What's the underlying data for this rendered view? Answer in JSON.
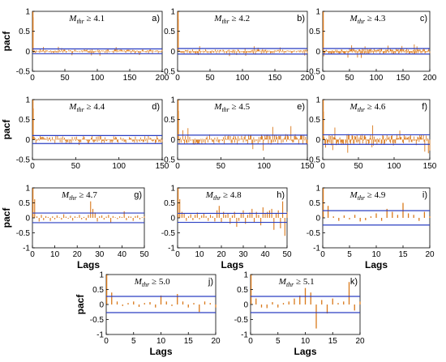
{
  "colors": {
    "bar": "#d9781a",
    "band": "#2b3fc2",
    "frame": "#000000"
  },
  "chart_data": [
    {
      "id": "a",
      "type": "bar",
      "title": "M_thr ≥ 4.1",
      "tag": "a)",
      "threshold_symbol": "M",
      "threshold_sub": "thr",
      "threshold_text": "≥ 4.1",
      "ylabel": "pacf",
      "xlabel": "",
      "xlim": [
        0,
        200
      ],
      "ylim": [
        -0.5,
        1
      ],
      "xticks": [
        0,
        50,
        100,
        150,
        200
      ],
      "yticks": [
        -0.5,
        0,
        0.5,
        1
      ],
      "ytick_labels": [
        "-0.5",
        "0",
        "0.5",
        "1"
      ],
      "conf": 0.06,
      "nlags": 200,
      "seed": 11,
      "amp": 0.045,
      "lag1": 0.85
    },
    {
      "id": "b",
      "type": "bar",
      "title": "M_thr ≥ 4.2",
      "tag": "b)",
      "threshold_symbol": "M",
      "threshold_sub": "thr",
      "threshold_text": "≥ 4.2",
      "ylabel": "",
      "xlabel": "",
      "xlim": [
        0,
        200
      ],
      "ylim": [
        -0.5,
        1
      ],
      "xticks": [
        0,
        50,
        100,
        150,
        200
      ],
      "yticks": [
        -0.5,
        0,
        0.5,
        1
      ],
      "ytick_labels": [
        "-0.5",
        "0",
        "0.5",
        "1"
      ],
      "conf": 0.07,
      "nlags": 200,
      "seed": 23,
      "amp": 0.05,
      "lag1": 0.8
    },
    {
      "id": "c",
      "type": "bar",
      "title": "M_thr ≥ 4.3",
      "tag": "c)",
      "threshold_symbol": "M",
      "threshold_sub": "thr",
      "threshold_text": "≥ 4.3",
      "ylabel": "",
      "xlabel": "",
      "xlim": [
        0,
        200
      ],
      "ylim": [
        -0.5,
        1
      ],
      "xticks": [
        0,
        50,
        100,
        150,
        200
      ],
      "yticks": [
        -0.5,
        0,
        0.5,
        1
      ],
      "ytick_labels": [
        "-0.5",
        "0",
        "0.5",
        "1"
      ],
      "conf": 0.07,
      "nlags": 200,
      "seed": 37,
      "amp": 0.07,
      "lag1": 0.78
    },
    {
      "id": "d",
      "type": "bar",
      "title": "M_thr ≥ 4.4",
      "tag": "d)",
      "threshold_symbol": "M",
      "threshold_sub": "thr",
      "threshold_text": "≥ 4.4",
      "ylabel": "pacf",
      "xlabel": "",
      "xlim": [
        0,
        150
      ],
      "ylim": [
        -0.5,
        1
      ],
      "xticks": [
        0,
        50,
        100,
        150
      ],
      "yticks": [
        -0.5,
        0,
        0.5,
        1
      ],
      "ytick_labels": [
        "-0.5",
        "0",
        "0.5",
        "1"
      ],
      "conf": 0.1,
      "nlags": 150,
      "seed": 41,
      "amp": 0.09,
      "lag1": 0.78
    },
    {
      "id": "e",
      "type": "bar",
      "title": "M_thr ≥ 4.5",
      "tag": "e)",
      "threshold_symbol": "M",
      "threshold_sub": "thr",
      "threshold_text": "≥ 4.5",
      "ylabel": "",
      "xlabel": "",
      "xlim": [
        0,
        150
      ],
      "ylim": [
        -0.5,
        1
      ],
      "xticks": [
        0,
        50,
        100,
        150
      ],
      "yticks": [
        -0.5,
        0,
        0.5,
        1
      ],
      "ytick_labels": [
        "-0.5",
        "0",
        "0.5",
        "1"
      ],
      "conf": 0.11,
      "nlags": 150,
      "seed": 53,
      "amp": 0.13,
      "lag1": 0.72
    },
    {
      "id": "f",
      "type": "bar",
      "title": "M_thr ≥ 4.6",
      "tag": "f)",
      "threshold_symbol": "M",
      "threshold_sub": "thr",
      "threshold_text": "≥ 4.6",
      "ylabel": "",
      "xlabel": "",
      "xlim": [
        0,
        150
      ],
      "ylim": [
        -0.5,
        1
      ],
      "xticks": [
        0,
        50,
        100,
        150
      ],
      "yticks": [
        -0.5,
        0,
        0.5,
        1
      ],
      "ytick_labels": [
        "-0.5",
        "0",
        "0.5",
        "1"
      ],
      "conf": 0.12,
      "nlags": 150,
      "seed": 67,
      "amp": 0.14,
      "lag1": 0.7
    },
    {
      "id": "g",
      "type": "bar",
      "title": "M_thr ≥ 4.7",
      "tag": "g)",
      "threshold_symbol": "M",
      "threshold_sub": "thr",
      "threshold_text": "≥ 4.7",
      "ylabel": "pacf",
      "xlabel": "Lags",
      "xlim": [
        0,
        50
      ],
      "ylim": [
        -1,
        1
      ],
      "xticks": [
        0,
        10,
        20,
        30,
        40,
        50
      ],
      "yticks": [
        -1,
        -0.5,
        0,
        0.5,
        1
      ],
      "ytick_labels": [
        "-1",
        "-0.5",
        "0",
        "0.5",
        "1"
      ],
      "conf": 0.16,
      "nlags": 50,
      "values": [
        0.62,
        0.05,
        -0.12,
        0.1,
        -0.08,
        0.06,
        0.03,
        -0.1,
        0.05,
        -0.05,
        0.08,
        0.02,
        -0.06,
        0.12,
        0.04,
        -0.03,
        0.07,
        -0.09,
        0.05,
        0.02,
        0.1,
        -0.05,
        0.03,
        -0.08,
        0.1,
        0.55,
        0.3,
        0.18,
        -0.12,
        0.05,
        0.08,
        -0.06,
        0.04,
        0.1,
        -0.15,
        0.06,
        0.02,
        -0.04,
        0.05,
        0.03,
        0.22,
        -0.08,
        0.05,
        0.04,
        -0.1,
        0.06,
        0.08,
        -0.05,
        0.02,
        0.05
      ]
    },
    {
      "id": "h",
      "type": "bar",
      "title": "M_thr ≥ 4.8",
      "tag": "h)",
      "threshold_symbol": "M",
      "threshold_sub": "thr",
      "threshold_text": "≥ 4.8",
      "ylabel": "",
      "xlabel": "Lags",
      "xlim": [
        0,
        50
      ],
      "ylim": [
        -1,
        1
      ],
      "xticks": [
        0,
        10,
        20,
        30,
        40,
        50
      ],
      "yticks": [
        -1,
        -0.5,
        0,
        0.5,
        1
      ],
      "ytick_labels": [
        "-1",
        "-0.5",
        "0",
        "0.5",
        "1"
      ],
      "conf": 0.15,
      "nlags": 50,
      "values": [
        0.62,
        0.2,
        0.15,
        -0.1,
        0.05,
        0.12,
        -0.08,
        0.1,
        0.18,
        -0.05,
        0.08,
        0.15,
        0.06,
        -0.1,
        0.1,
        0.05,
        -0.12,
        0.25,
        0.4,
        -0.15,
        0.2,
        0.1,
        0.15,
        -0.2,
        0.08,
        0.2,
        -0.3,
        -0.1,
        0.15,
        0.25,
        -0.2,
        0.1,
        0.18,
        0.3,
        -0.15,
        0.2,
        0.1,
        -0.25,
        0.35,
        0.15,
        0.2,
        0.25,
        0.3,
        -0.4,
        0.15,
        0.25,
        -0.35,
        0.55,
        -0.6,
        0.2
      ]
    },
    {
      "id": "i",
      "type": "bar",
      "title": "M_thr ≥ 4.9",
      "tag": "i)",
      "threshold_symbol": "M",
      "threshold_sub": "thr",
      "threshold_text": "≥ 4.9",
      "ylabel": "",
      "xlabel": "Lags",
      "xlim": [
        0,
        20
      ],
      "ylim": [
        -1,
        1
      ],
      "xticks": [
        0,
        5,
        10,
        15,
        20
      ],
      "yticks": [
        -1,
        -0.5,
        0,
        0.5,
        1
      ],
      "ytick_labels": [
        "-1",
        "-0.5",
        "0",
        "0.5",
        "1"
      ],
      "conf": 0.24,
      "nlags": 20,
      "values": [
        0.4,
        0.05,
        -0.1,
        0.08,
        -0.05,
        0.1,
        -0.12,
        -0.08,
        0.05,
        0.15,
        -0.1,
        0.3,
        0.2,
        0.1,
        0.5,
        0.15,
        0.1,
        -0.1,
        0.2,
        0.05
      ]
    },
    {
      "id": "j",
      "type": "bar",
      "title": "M_thr ≥ 5.0",
      "tag": "j)",
      "threshold_symbol": "M",
      "threshold_sub": "thr",
      "threshold_text": "≥ 5.0",
      "ylabel": "pacf",
      "xlabel": "Lags",
      "xlim": [
        0,
        20
      ],
      "ylim": [
        -1,
        1
      ],
      "xticks": [
        0,
        5,
        10,
        15,
        20
      ],
      "yticks": [
        -1,
        -0.5,
        0,
        0.5,
        1
      ],
      "ytick_labels": [
        "-1",
        "-0.5",
        "0",
        "0.5",
        "1"
      ],
      "conf": 0.27,
      "nlags": 20,
      "values": [
        0.4,
        0.1,
        -0.05,
        0.05,
        0.1,
        -0.08,
        0.05,
        0.08,
        -0.1,
        0.3,
        0.1,
        -0.05,
        0.35,
        0.1,
        -0.1,
        0.05,
        -0.25,
        0.1,
        0.05,
        -0.1
      ]
    },
    {
      "id": "k",
      "type": "bar",
      "title": "M_thr ≥ 5.1",
      "tag": "k)",
      "threshold_symbol": "M",
      "threshold_sub": "thr",
      "threshold_text": "≥ 5.1",
      "ylabel": "",
      "xlabel": "Lags",
      "xlim": [
        0,
        20
      ],
      "ylim": [
        -1,
        1
      ],
      "xticks": [
        0,
        5,
        10,
        15,
        20
      ],
      "yticks": [
        -1,
        -0.5,
        0,
        0.5,
        1
      ],
      "ytick_labels": [
        "-1",
        "-0.5",
        "0",
        "0.5",
        "1"
      ],
      "conf": 0.27,
      "nlags": 20,
      "values": [
        0.2,
        -0.1,
        -0.12,
        0.08,
        -0.1,
        0.05,
        0.1,
        0.2,
        0.3,
        0.55,
        0.4,
        -0.8,
        0.15,
        -0.3,
        0.2,
        0.05,
        0.1,
        0.75,
        -0.2,
        0.1
      ]
    }
  ]
}
